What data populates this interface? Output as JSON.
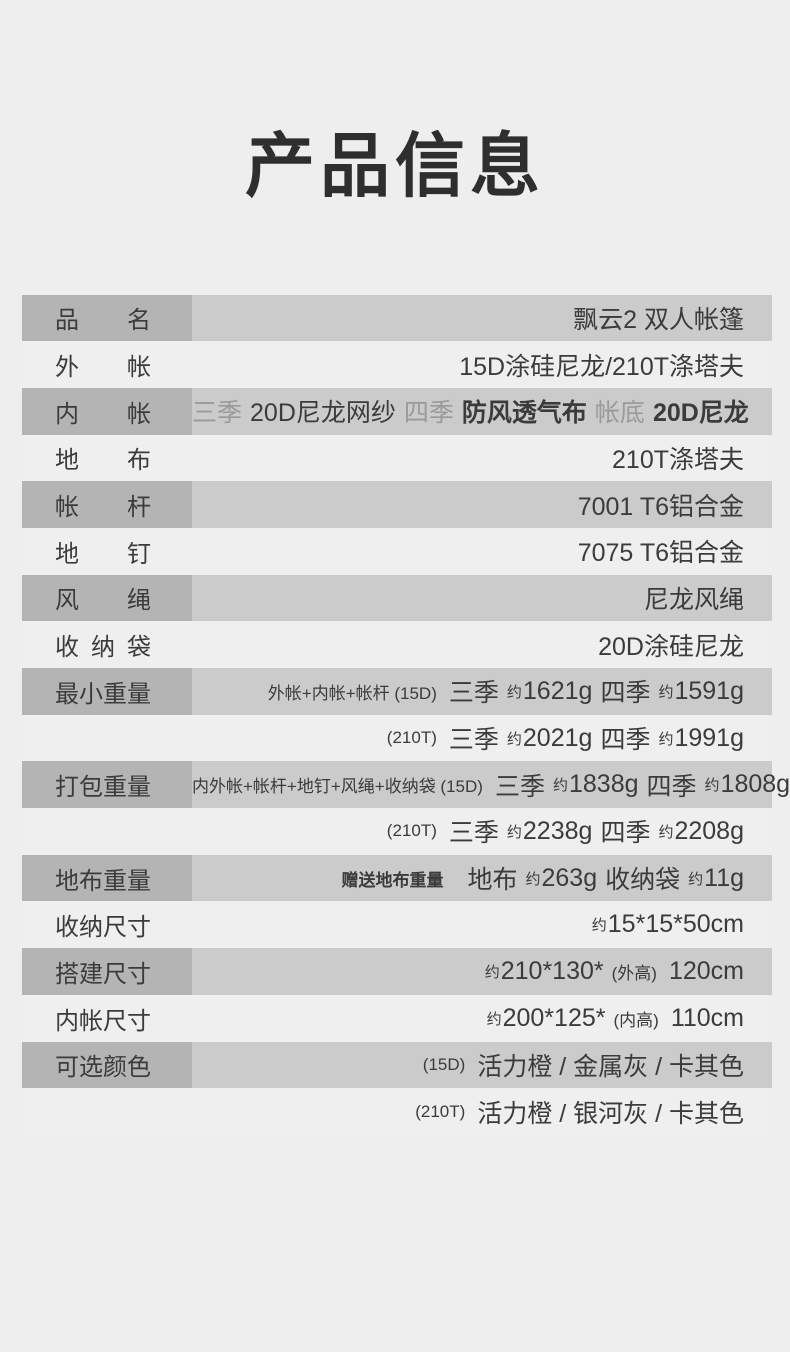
{
  "page": {
    "title": "产品信息"
  },
  "colors": {
    "page_bg": "#eeeeee",
    "row_light_bg": "#efefef",
    "label_cell_bg": "#b4b4b4",
    "value_cell_bg": "#cbcbcb",
    "title_text": "#2e2e2e",
    "text_dark": "#3b3b3b",
    "text_gray": "#9a9a9a"
  },
  "table": {
    "rows": [
      {
        "label": "品名",
        "shade": "gray",
        "segments": [
          {
            "t": "飘云2 双人帐篷",
            "s": "big"
          }
        ]
      },
      {
        "label": "外帐",
        "shade": "light",
        "segments": [
          {
            "t": "15D涂硅尼龙/210T涤塔夫",
            "s": "big"
          }
        ]
      },
      {
        "label": "内帐",
        "shade": "gray",
        "segments": [
          {
            "t": "三季",
            "s": "gray"
          },
          {
            "t": "20D尼龙网纱",
            "s": "big"
          },
          {
            "t": "四季",
            "s": "gray"
          },
          {
            "t": "防风透气布",
            "s": "big-bold"
          },
          {
            "t": "帐底",
            "s": "gray"
          },
          {
            "t": "20D尼龙",
            "s": "big-bold"
          }
        ]
      },
      {
        "label": "地布",
        "shade": "light",
        "segments": [
          {
            "t": "210T涤塔夫",
            "s": "big"
          }
        ]
      },
      {
        "label": "帐杆",
        "shade": "gray",
        "segments": [
          {
            "t": "7001 T6铝合金",
            "s": "big"
          }
        ]
      },
      {
        "label": "地钉",
        "shade": "light",
        "segments": [
          {
            "t": "7075 T6铝合金",
            "s": "big"
          }
        ]
      },
      {
        "label": "风绳",
        "shade": "gray",
        "segments": [
          {
            "t": "尼龙风绳",
            "s": "big"
          }
        ]
      },
      {
        "label": "收纳袋",
        "shade": "light",
        "segments": [
          {
            "t": "20D涂硅尼龙",
            "s": "big"
          }
        ]
      },
      {
        "label": "最小重量",
        "shade": "gray",
        "segments": [
          {
            "t": "外帐+内帐+帐杆 (15D)",
            "s": "small"
          },
          {
            "t": "三季",
            "s": "big"
          },
          {
            "t": "约",
            "s": "approx"
          },
          {
            "t": "1621g",
            "s": "big"
          },
          {
            "t": "四季",
            "s": "big"
          },
          {
            "t": "约",
            "s": "approx"
          },
          {
            "t": "1591g",
            "s": "big"
          }
        ]
      },
      {
        "label": "",
        "shade": "light",
        "segments": [
          {
            "t": "(210T)",
            "s": "small"
          },
          {
            "t": "三季",
            "s": "big"
          },
          {
            "t": "约",
            "s": "approx"
          },
          {
            "t": "2021g",
            "s": "big"
          },
          {
            "t": "四季",
            "s": "big"
          },
          {
            "t": "约",
            "s": "approx"
          },
          {
            "t": "1991g",
            "s": "big"
          }
        ]
      },
      {
        "label": "打包重量",
        "shade": "gray",
        "segments": [
          {
            "t": "内外帐+帐杆+地钉+风绳+收纳袋 (15D)",
            "s": "small"
          },
          {
            "t": "三季",
            "s": "big"
          },
          {
            "t": "约",
            "s": "approx"
          },
          {
            "t": "1838g",
            "s": "big"
          },
          {
            "t": "四季",
            "s": "big"
          },
          {
            "t": "约",
            "s": "approx"
          },
          {
            "t": "1808g",
            "s": "big"
          }
        ]
      },
      {
        "label": "",
        "shade": "light",
        "segments": [
          {
            "t": "(210T)",
            "s": "small"
          },
          {
            "t": "三季",
            "s": "big"
          },
          {
            "t": "约",
            "s": "approx"
          },
          {
            "t": "2238g",
            "s": "big"
          },
          {
            "t": "四季",
            "s": "big"
          },
          {
            "t": "约",
            "s": "approx"
          },
          {
            "t": "2208g",
            "s": "big"
          }
        ]
      },
      {
        "label": "地布重量",
        "shade": "gray",
        "segments": [
          {
            "t": "赠送地布重量",
            "s": "small-bold"
          },
          {
            "t": "地布",
            "s": "big"
          },
          {
            "t": "约",
            "s": "approx"
          },
          {
            "t": "263g",
            "s": "big"
          },
          {
            "t": "收纳袋",
            "s": "big"
          },
          {
            "t": "约",
            "s": "approx"
          },
          {
            "t": "11g",
            "s": "big"
          }
        ]
      },
      {
        "label": "收纳尺寸",
        "shade": "light",
        "segments": [
          {
            "t": "约",
            "s": "approx"
          },
          {
            "t": "15*15*50cm",
            "s": "big"
          }
        ]
      },
      {
        "label": "搭建尺寸",
        "shade": "gray",
        "segments": [
          {
            "t": "约",
            "s": "approx"
          },
          {
            "t": "210*130*",
            "s": "big"
          },
          {
            "t": "(外高)",
            "s": "small"
          },
          {
            "t": "120cm",
            "s": "big"
          }
        ]
      },
      {
        "label": "内帐尺寸",
        "shade": "light",
        "segments": [
          {
            "t": "约",
            "s": "approx"
          },
          {
            "t": "200*125*",
            "s": "big"
          },
          {
            "t": "(内高)",
            "s": "small"
          },
          {
            "t": "110cm",
            "s": "big"
          }
        ]
      },
      {
        "label": "可选颜色",
        "shade": "gray",
        "segments": [
          {
            "t": "(15D)",
            "s": "small"
          },
          {
            "t": "活力橙 / 金属灰 / 卡其色",
            "s": "big"
          }
        ]
      },
      {
        "label": "",
        "shade": "light",
        "segments": [
          {
            "t": "(210T)",
            "s": "small"
          },
          {
            "t": "活力橙 / 银河灰 / 卡其色",
            "s": "big"
          }
        ]
      }
    ]
  }
}
